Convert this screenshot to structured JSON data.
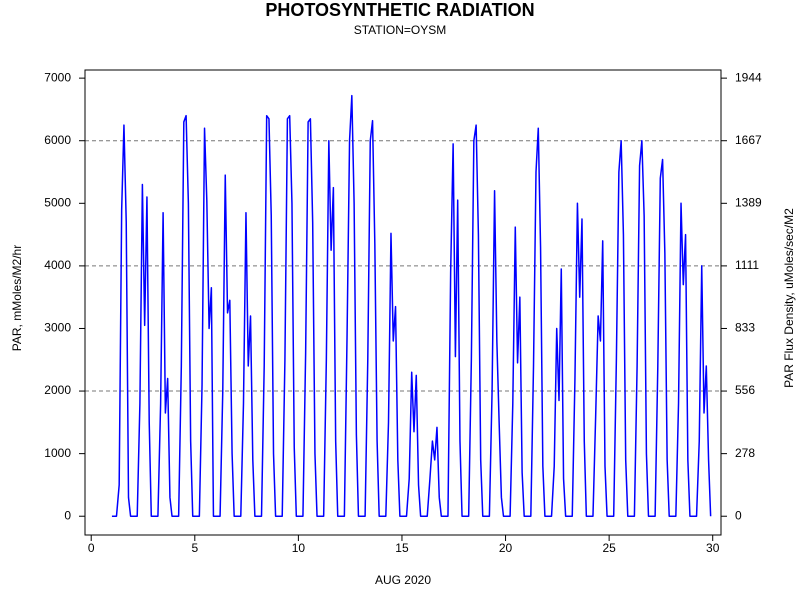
{
  "chart_data": {
    "type": "line",
    "title": "PHOTOSYNTHETIC RADIATION",
    "subtitle": "STATION=OYSM",
    "x_label": "AUG 2020",
    "y_label": "PAR, mMoles/M2/hr",
    "y2_label": "PAR Flux Density, uMoles/sec/M2",
    "xlim": [
      -0.3,
      30.4
    ],
    "xticks": [
      0,
      5,
      10,
      15,
      20,
      25,
      30
    ],
    "ylim": [
      -300,
      7130
    ],
    "yticks": [
      0,
      1000,
      2000,
      3000,
      4000,
      5000,
      6000,
      7000
    ],
    "y2lim": [
      -83.33,
      1980.56
    ],
    "y2ticks": [
      0,
      {
        "value": 277.78,
        "label": "278"
      },
      {
        "value": 555.56,
        "label": "556"
      },
      {
        "value": 833.33,
        "label": "833"
      },
      {
        "value": 1111.11,
        "label": "1111"
      },
      {
        "value": 1388.89,
        "label": "1389"
      },
      {
        "value": 1666.67,
        "label": "1667"
      },
      {
        "value": 1944.44,
        "label": "1944"
      }
    ],
    "grid_lines": [
      2000,
      4000,
      6000
    ],
    "series": [
      {
        "color": "#0000ff",
        "x": [
          1.0,
          1.22,
          1.35,
          1.47,
          1.58,
          1.69,
          1.8,
          1.9,
          2.22,
          2.35,
          2.47,
          2.58,
          2.69,
          2.8,
          2.9,
          3.22,
          3.35,
          3.47,
          3.58,
          3.69,
          3.8,
          3.9,
          4.22,
          4.35,
          4.47,
          4.58,
          4.69,
          4.8,
          4.9,
          5.22,
          5.35,
          5.47,
          5.58,
          5.69,
          5.8,
          5.9,
          6.22,
          6.35,
          6.47,
          6.58,
          6.69,
          6.8,
          6.9,
          7.22,
          7.35,
          7.47,
          7.58,
          7.69,
          7.8,
          7.9,
          8.22,
          8.35,
          8.47,
          8.58,
          8.69,
          8.8,
          8.9,
          9.22,
          9.35,
          9.47,
          9.58,
          9.69,
          9.8,
          9.9,
          10.22,
          10.35,
          10.47,
          10.58,
          10.69,
          10.8,
          10.9,
          11.22,
          11.35,
          11.47,
          11.58,
          11.69,
          11.8,
          11.9,
          12.22,
          12.35,
          12.47,
          12.58,
          12.69,
          12.8,
          12.9,
          13.22,
          13.35,
          13.47,
          13.58,
          13.69,
          13.8,
          13.9,
          14.22,
          14.35,
          14.47,
          14.58,
          14.69,
          14.8,
          14.9,
          15.22,
          15.35,
          15.47,
          15.58,
          15.69,
          15.8,
          15.9,
          16.22,
          16.35,
          16.47,
          16.58,
          16.69,
          16.8,
          16.9,
          17.22,
          17.35,
          17.47,
          17.58,
          17.69,
          17.8,
          17.9,
          18.22,
          18.35,
          18.47,
          18.58,
          18.69,
          18.8,
          18.9,
          19.22,
          19.35,
          19.47,
          19.58,
          19.69,
          19.8,
          19.9,
          20.22,
          20.35,
          20.47,
          20.58,
          20.69,
          20.8,
          20.9,
          21.22,
          21.35,
          21.47,
          21.58,
          21.69,
          21.8,
          21.9,
          22.22,
          22.35,
          22.47,
          22.58,
          22.69,
          22.8,
          22.9,
          23.22,
          23.35,
          23.47,
          23.58,
          23.69,
          23.8,
          23.9,
          24.22,
          24.35,
          24.47,
          24.58,
          24.69,
          24.8,
          24.9,
          25.22,
          25.35,
          25.47,
          25.58,
          25.69,
          25.8,
          25.9,
          26.22,
          26.35,
          26.47,
          26.58,
          26.69,
          26.8,
          26.9,
          27.22,
          27.35,
          27.47,
          27.58,
          27.69,
          27.8,
          27.9,
          28.22,
          28.35,
          28.47,
          28.58,
          28.69,
          28.8,
          28.9,
          29.22,
          29.35,
          29.47,
          29.58,
          29.69,
          29.8,
          29.9
        ],
        "values": [
          0,
          0,
          500,
          4900,
          6250,
          4700,
          300,
          0,
          0,
          1800,
          5300,
          3050,
          5100,
          1500,
          0,
          0,
          1800,
          4850,
          1650,
          2200,
          300,
          0,
          0,
          2400,
          6300,
          6400,
          5000,
          1200,
          0,
          0,
          2100,
          6200,
          5050,
          3000,
          3650,
          0,
          0,
          2000,
          5450,
          3250,
          3450,
          1000,
          0,
          0,
          1800,
          4850,
          2400,
          3200,
          900,
          0,
          0,
          2400,
          6400,
          6350,
          4800,
          1000,
          0,
          0,
          2500,
          6350,
          6400,
          5000,
          1100,
          0,
          0,
          2600,
          6300,
          6350,
          4700,
          1000,
          0,
          0,
          2500,
          6000,
          4250,
          5250,
          1200,
          0,
          0,
          2900,
          6000,
          6720,
          5000,
          1300,
          0,
          0,
          2500,
          6000,
          6320,
          4350,
          1200,
          0,
          0,
          1500,
          4520,
          2800,
          3350,
          900,
          0,
          0,
          600,
          2300,
          1350,
          2250,
          500,
          0,
          0,
          600,
          1200,
          900,
          1420,
          300,
          0,
          0,
          3900,
          5950,
          2550,
          5050,
          1200,
          0,
          0,
          2500,
          6000,
          6250,
          4500,
          900,
          0,
          0,
          2000,
          5200,
          2800,
          1500,
          300,
          0,
          0,
          1800,
          4620,
          2450,
          3500,
          700,
          0,
          0,
          2400,
          5500,
          6200,
          4300,
          800,
          0,
          0,
          800,
          3000,
          1850,
          3950,
          600,
          0,
          0,
          2200,
          5000,
          3500,
          4750,
          1200,
          0,
          0,
          1600,
          3200,
          2800,
          4400,
          800,
          0,
          0,
          2500,
          5500,
          6000,
          4500,
          900,
          0,
          0,
          2400,
          5600,
          6000,
          4800,
          1000,
          0,
          0,
          2400,
          5400,
          5700,
          4200,
          900,
          0,
          0,
          1800,
          5000,
          3700,
          4500,
          900,
          0,
          0,
          1200,
          4000,
          1650,
          2400,
          900,
          0
        ]
      }
    ]
  }
}
